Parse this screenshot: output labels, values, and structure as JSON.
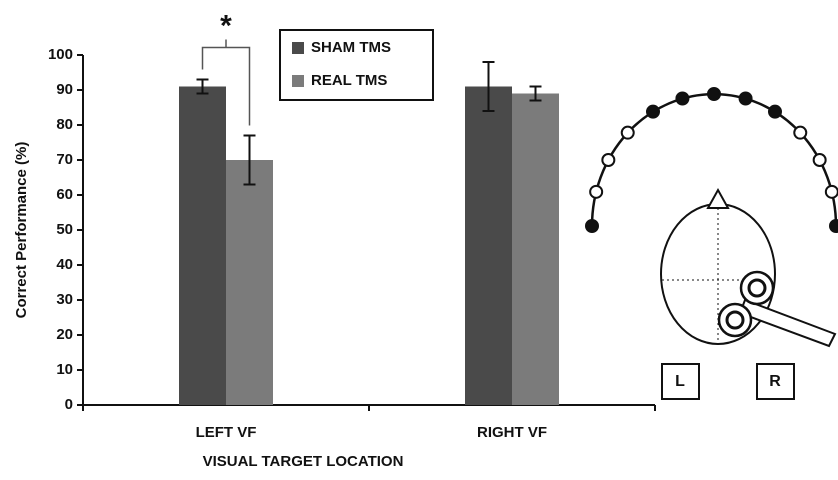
{
  "chart_data": {
    "type": "bar",
    "categories": [
      "LEFT VF",
      "RIGHT VF"
    ],
    "series": [
      {
        "name": "SHAM TMS",
        "color": "#4a4a4a",
        "values": [
          91,
          91
        ],
        "errors": [
          2,
          7
        ]
      },
      {
        "name": "REAL TMS",
        "color": "#7b7b7b",
        "values": [
          70,
          89
        ],
        "errors": [
          7,
          2
        ]
      }
    ],
    "x_label": "VISUAL TARGET LOCATION",
    "y_label": "Correct Performance (%)",
    "ylim": [
      0,
      100
    ],
    "yticks": [
      0,
      10,
      20,
      30,
      40,
      50,
      60,
      70,
      80,
      90,
      100
    ],
    "grid": false,
    "legend": "top",
    "significance": {
      "text": "*",
      "category": 0
    }
  },
  "diagram": {
    "left_label": "L",
    "right_label": "R"
  }
}
